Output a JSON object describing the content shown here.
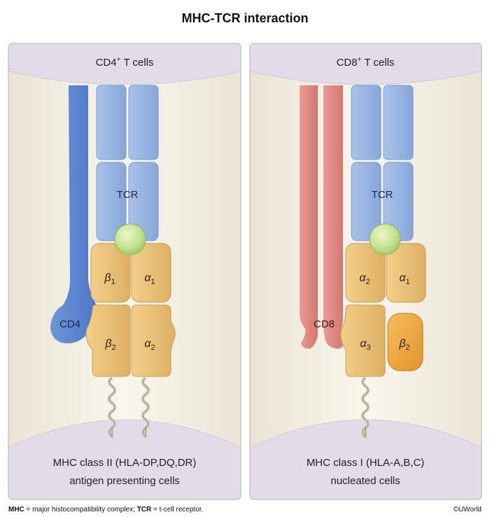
{
  "title": "MHC-TCR interaction",
  "left_panel": {
    "cell_label": "CD4",
    "cell_label_sup": "+",
    "cell_label_rest": " T cells",
    "tcr_label": "TCR",
    "coreceptor_label": "CD4",
    "domains": {
      "top_left": {
        "letter": "β",
        "sub": "1"
      },
      "top_right": {
        "letter": "α",
        "sub": "1"
      },
      "bottom_left": {
        "letter": "β",
        "sub": "2"
      },
      "bottom_right": {
        "letter": "α",
        "sub": "2"
      }
    },
    "bottom_line1": "MHC class II (HLA-DP,DQ,DR)",
    "bottom_line2": "antigen presenting cells"
  },
  "right_panel": {
    "cell_label": "CD8",
    "cell_label_sup": "+",
    "cell_label_rest": " T cells",
    "tcr_label": "TCR",
    "coreceptor_label": "CD8",
    "domains": {
      "top_left": {
        "letter": "α",
        "sub": "2"
      },
      "top_right": {
        "letter": "α",
        "sub": "1"
      },
      "bottom_left": {
        "letter": "α",
        "sub": "3"
      },
      "beta2m": {
        "letter": "β",
        "sub": "2"
      }
    },
    "bottom_line1": "MHC class I (HLA-A,B,C)",
    "bottom_line2": "nucleated cells"
  },
  "footer": {
    "mhc_abbr": "MHC",
    "mhc_def": " = major histocompatibility complex; ",
    "tcr_abbr": "TCR",
    "tcr_def": " = t-cell receptor."
  },
  "copyright": "©UWorld",
  "colors": {
    "panel_bg": "#f7f2e6",
    "membrane": "#e4dfea",
    "tcr_blue": "#9ab6e3",
    "cd4_blue": "#5b86d2",
    "cd8_red": "#e08a85",
    "mhc_tan": "#eac27c",
    "beta2m_orange": "#f0ab45",
    "peptide_green": "#c9e595"
  }
}
